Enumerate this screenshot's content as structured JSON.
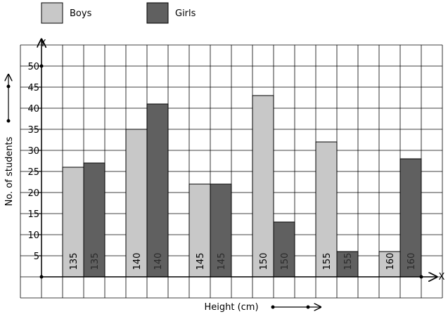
{
  "chart_data": {
    "type": "bar",
    "categories": [
      "135",
      "140",
      "145",
      "150",
      "155",
      "160"
    ],
    "series": [
      {
        "name": "Boys",
        "values": [
          26,
          35,
          22,
          43,
          32,
          6
        ],
        "color": "#c8c8c8"
      },
      {
        "name": "Girls",
        "values": [
          27,
          41,
          22,
          13,
          6,
          28
        ],
        "color": "#606060"
      }
    ],
    "xlabel": "Height (cm)",
    "ylabel": "No. of students",
    "y_axis_letter": "Y",
    "x_axis_letter": "X",
    "ylim": [
      0,
      50
    ],
    "yticks": [
      5,
      10,
      15,
      20,
      25,
      30,
      35,
      40,
      45,
      50
    ],
    "grid": true,
    "legend_position": "top-left"
  }
}
